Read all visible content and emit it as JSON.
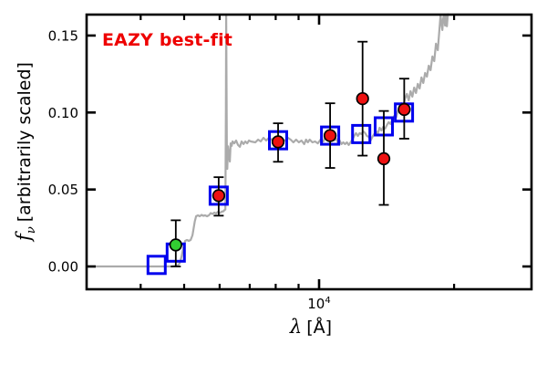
{
  "chart_data": {
    "type": "line+scatter+errorbar",
    "annotation": "EAZY best-fit",
    "xlabel_symbol": "λ",
    "xlabel_rest": "[Å]",
    "ylabel_symbol": "f",
    "ylabel_sub": "ν",
    "ylabel_rest": "[arbitrarily scaled]",
    "x_scale": "log",
    "xlim": [
      3030,
      29760
    ],
    "ylim": [
      -0.0148,
      0.1636
    ],
    "grid": false,
    "legend": "none",
    "colors": {
      "annotation": "#ee0000",
      "spectrum": "#ababab",
      "model_squares": "#0000ee",
      "observed_red": "#ee1111",
      "observed_green": "#32cd32",
      "errorbar": "#000000",
      "frame": "#000000"
    },
    "yticks": [
      {
        "value": 0.0,
        "label": "0.00"
      },
      {
        "value": 0.05,
        "label": "0.05"
      },
      {
        "value": 0.1,
        "label": "0.10"
      },
      {
        "value": 0.15,
        "label": "0.15"
      }
    ],
    "xticks_minor": [
      4000,
      5000,
      6000,
      7000,
      8000,
      9000,
      20000
    ],
    "xticks_major": [
      10000
    ],
    "xtick_major_label": {
      "base": "10",
      "exp": "4"
    },
    "series": {
      "spectrum": {
        "name": "EAZY template spectrum",
        "points": [
          [
            3030,
            0.0
          ],
          [
            3500,
            0.0
          ],
          [
            4000,
            0.0
          ],
          [
            4400,
            0.0
          ],
          [
            4700,
            0.0
          ],
          [
            4830,
            0.0005
          ],
          [
            4885,
            0.002
          ],
          [
            4935,
            0.0065
          ],
          [
            4981,
            0.0125
          ],
          [
            5027,
            0.0166
          ],
          [
            5074,
            0.0172
          ],
          [
            5121,
            0.0166
          ],
          [
            5169,
            0.0172
          ],
          [
            5218,
            0.0202
          ],
          [
            5242,
            0.0237
          ],
          [
            5279,
            0.0291
          ],
          [
            5316,
            0.0326
          ],
          [
            5366,
            0.0332
          ],
          [
            5416,
            0.0326
          ],
          [
            5467,
            0.0335
          ],
          [
            5518,
            0.0329
          ],
          [
            5570,
            0.0332
          ],
          [
            5623,
            0.0326
          ],
          [
            5676,
            0.0332
          ],
          [
            5729,
            0.0347
          ],
          [
            5783,
            0.0341
          ],
          [
            5838,
            0.035
          ],
          [
            5893,
            0.0344
          ],
          [
            5948,
            0.0356
          ],
          [
            6004,
            0.0347
          ],
          [
            6061,
            0.0356
          ],
          [
            6118,
            0.0359
          ],
          [
            6161,
            0.0368
          ],
          [
            6180,
            0.037
          ],
          [
            6195,
            0.102
          ],
          [
            6205,
            0.1635
          ],
          [
            6225,
            0.08
          ],
          [
            6240,
            0.0634
          ],
          [
            6262,
            0.078
          ],
          [
            6291,
            0.0723
          ],
          [
            6321,
            0.0682
          ],
          [
            6350,
            0.08
          ],
          [
            6380,
            0.0783
          ],
          [
            6410,
            0.0812
          ],
          [
            6470,
            0.08
          ],
          [
            6531,
            0.0818
          ],
          [
            6593,
            0.0789
          ],
          [
            6655,
            0.0777
          ],
          [
            6717,
            0.0812
          ],
          [
            6781,
            0.0795
          ],
          [
            6845,
            0.0812
          ],
          [
            6909,
            0.08
          ],
          [
            6974,
            0.0818
          ],
          [
            7040,
            0.0812
          ],
          [
            7206,
            0.0806
          ],
          [
            7308,
            0.0824
          ],
          [
            7410,
            0.0812
          ],
          [
            7515,
            0.0836
          ],
          [
            7620,
            0.0818
          ],
          [
            7727,
            0.0836
          ],
          [
            7836,
            0.0824
          ],
          [
            7946,
            0.0836
          ],
          [
            8058,
            0.0818
          ],
          [
            8171,
            0.0836
          ],
          [
            8286,
            0.0824
          ],
          [
            8402,
            0.0818
          ],
          [
            8520,
            0.0836
          ],
          [
            8640,
            0.0824
          ],
          [
            8761,
            0.0806
          ],
          [
            8884,
            0.0824
          ],
          [
            9009,
            0.0806
          ],
          [
            9135,
            0.0818
          ],
          [
            9264,
            0.0795
          ],
          [
            9350,
            0.0824
          ],
          [
            9438,
            0.0806
          ],
          [
            9526,
            0.0824
          ],
          [
            9660,
            0.0806
          ],
          [
            9796,
            0.0812
          ],
          [
            9934,
            0.08
          ],
          [
            10074,
            0.0824
          ],
          [
            10215,
            0.0812
          ],
          [
            10311,
            0.0836
          ],
          [
            10407,
            0.0824
          ],
          [
            10504,
            0.0848
          ],
          [
            10603,
            0.0836
          ],
          [
            10702,
            0.0842
          ],
          [
            10803,
            0.0818
          ],
          [
            10904,
            0.083
          ],
          [
            11007,
            0.0806
          ],
          [
            11110,
            0.0818
          ],
          [
            11214,
            0.0795
          ],
          [
            11320,
            0.0806
          ],
          [
            11426,
            0.0795
          ],
          [
            11533,
            0.0806
          ],
          [
            11642,
            0.0789
          ],
          [
            11751,
            0.0806
          ],
          [
            11861,
            0.0824
          ],
          [
            11973,
            0.0848
          ],
          [
            12085,
            0.0866
          ],
          [
            12199,
            0.0848
          ],
          [
            12313,
            0.0866
          ],
          [
            12429,
            0.086
          ],
          [
            12546,
            0.0878
          ],
          [
            12663,
            0.0866
          ],
          [
            12782,
            0.0848
          ],
          [
            12902,
            0.0842
          ],
          [
            13023,
            0.0818
          ],
          [
            13145,
            0.0842
          ],
          [
            13269,
            0.086
          ],
          [
            13393,
            0.0878
          ],
          [
            13519,
            0.0866
          ],
          [
            13645,
            0.0901
          ],
          [
            13773,
            0.0883
          ],
          [
            13902,
            0.0907
          ],
          [
            14033,
            0.0895
          ],
          [
            14164,
            0.0919
          ],
          [
            14297,
            0.0937
          ],
          [
            14431,
            0.0925
          ],
          [
            14567,
            0.0955
          ],
          [
            14703,
            0.0978
          ],
          [
            14841,
            0.0967
          ],
          [
            14980,
            0.1008
          ],
          [
            15121,
            0.1026
          ],
          [
            15262,
            0.1061
          ],
          [
            15406,
            0.1044
          ],
          [
            15550,
            0.1091
          ],
          [
            15696,
            0.1121
          ],
          [
            15843,
            0.1079
          ],
          [
            15992,
            0.1139
          ],
          [
            16142,
            0.1103
          ],
          [
            16293,
            0.1162
          ],
          [
            16446,
            0.1127
          ],
          [
            16600,
            0.1186
          ],
          [
            16756,
            0.1156
          ],
          [
            16913,
            0.1228
          ],
          [
            17072,
            0.1192
          ],
          [
            17232,
            0.1257
          ],
          [
            17393,
            0.1233
          ],
          [
            17556,
            0.1304
          ],
          [
            17721,
            0.1275
          ],
          [
            17887,
            0.1364
          ],
          [
            18055,
            0.1334
          ],
          [
            18224,
            0.1447
          ],
          [
            18395,
            0.1405
          ],
          [
            18567,
            0.1554
          ],
          [
            18654,
            0.1631
          ],
          [
            18741,
            0.1583
          ],
          [
            18829,
            0.1536
          ],
          [
            18917,
            0.1613
          ],
          [
            19006,
            0.1636
          ],
          [
            19095,
            0.1565
          ],
          [
            19185,
            0.1636
          ],
          [
            19275,
            0.156
          ],
          [
            19365,
            0.1636
          ],
          [
            19456,
            0.164
          ]
        ]
      },
      "model": {
        "name": "Template photometry (blue open squares)",
        "points": [
          [
            4340,
            0.001
          ],
          [
            4790,
            0.009
          ],
          [
            5970,
            0.046
          ],
          [
            8100,
            0.082
          ],
          [
            10580,
            0.085
          ],
          [
            12410,
            0.086
          ],
          [
            13940,
            0.091
          ],
          [
            15460,
            0.1
          ]
        ]
      },
      "observed": {
        "name": "Observed photometry (filled circles with error bars)",
        "points": [
          {
            "lambda": 4790,
            "flux": 0.014,
            "lo": 0.0,
            "hi": 0.03,
            "color": "#32cd32"
          },
          {
            "lambda": 5970,
            "flux": 0.046,
            "lo": 0.033,
            "hi": 0.058,
            "color": "#ee1111"
          },
          {
            "lambda": 8100,
            "flux": 0.081,
            "lo": 0.068,
            "hi": 0.093,
            "color": "#ee1111"
          },
          {
            "lambda": 10580,
            "flux": 0.085,
            "lo": 0.064,
            "hi": 0.106,
            "color": "#ee1111"
          },
          {
            "lambda": 12500,
            "flux": 0.109,
            "lo": 0.072,
            "hi": 0.146,
            "color": "#ee1111"
          },
          {
            "lambda": 13940,
            "flux": 0.07,
            "lo": 0.04,
            "hi": 0.101,
            "color": "#ee1111"
          },
          {
            "lambda": 15480,
            "flux": 0.102,
            "lo": 0.083,
            "hi": 0.122,
            "color": "#ee1111"
          }
        ]
      }
    }
  }
}
